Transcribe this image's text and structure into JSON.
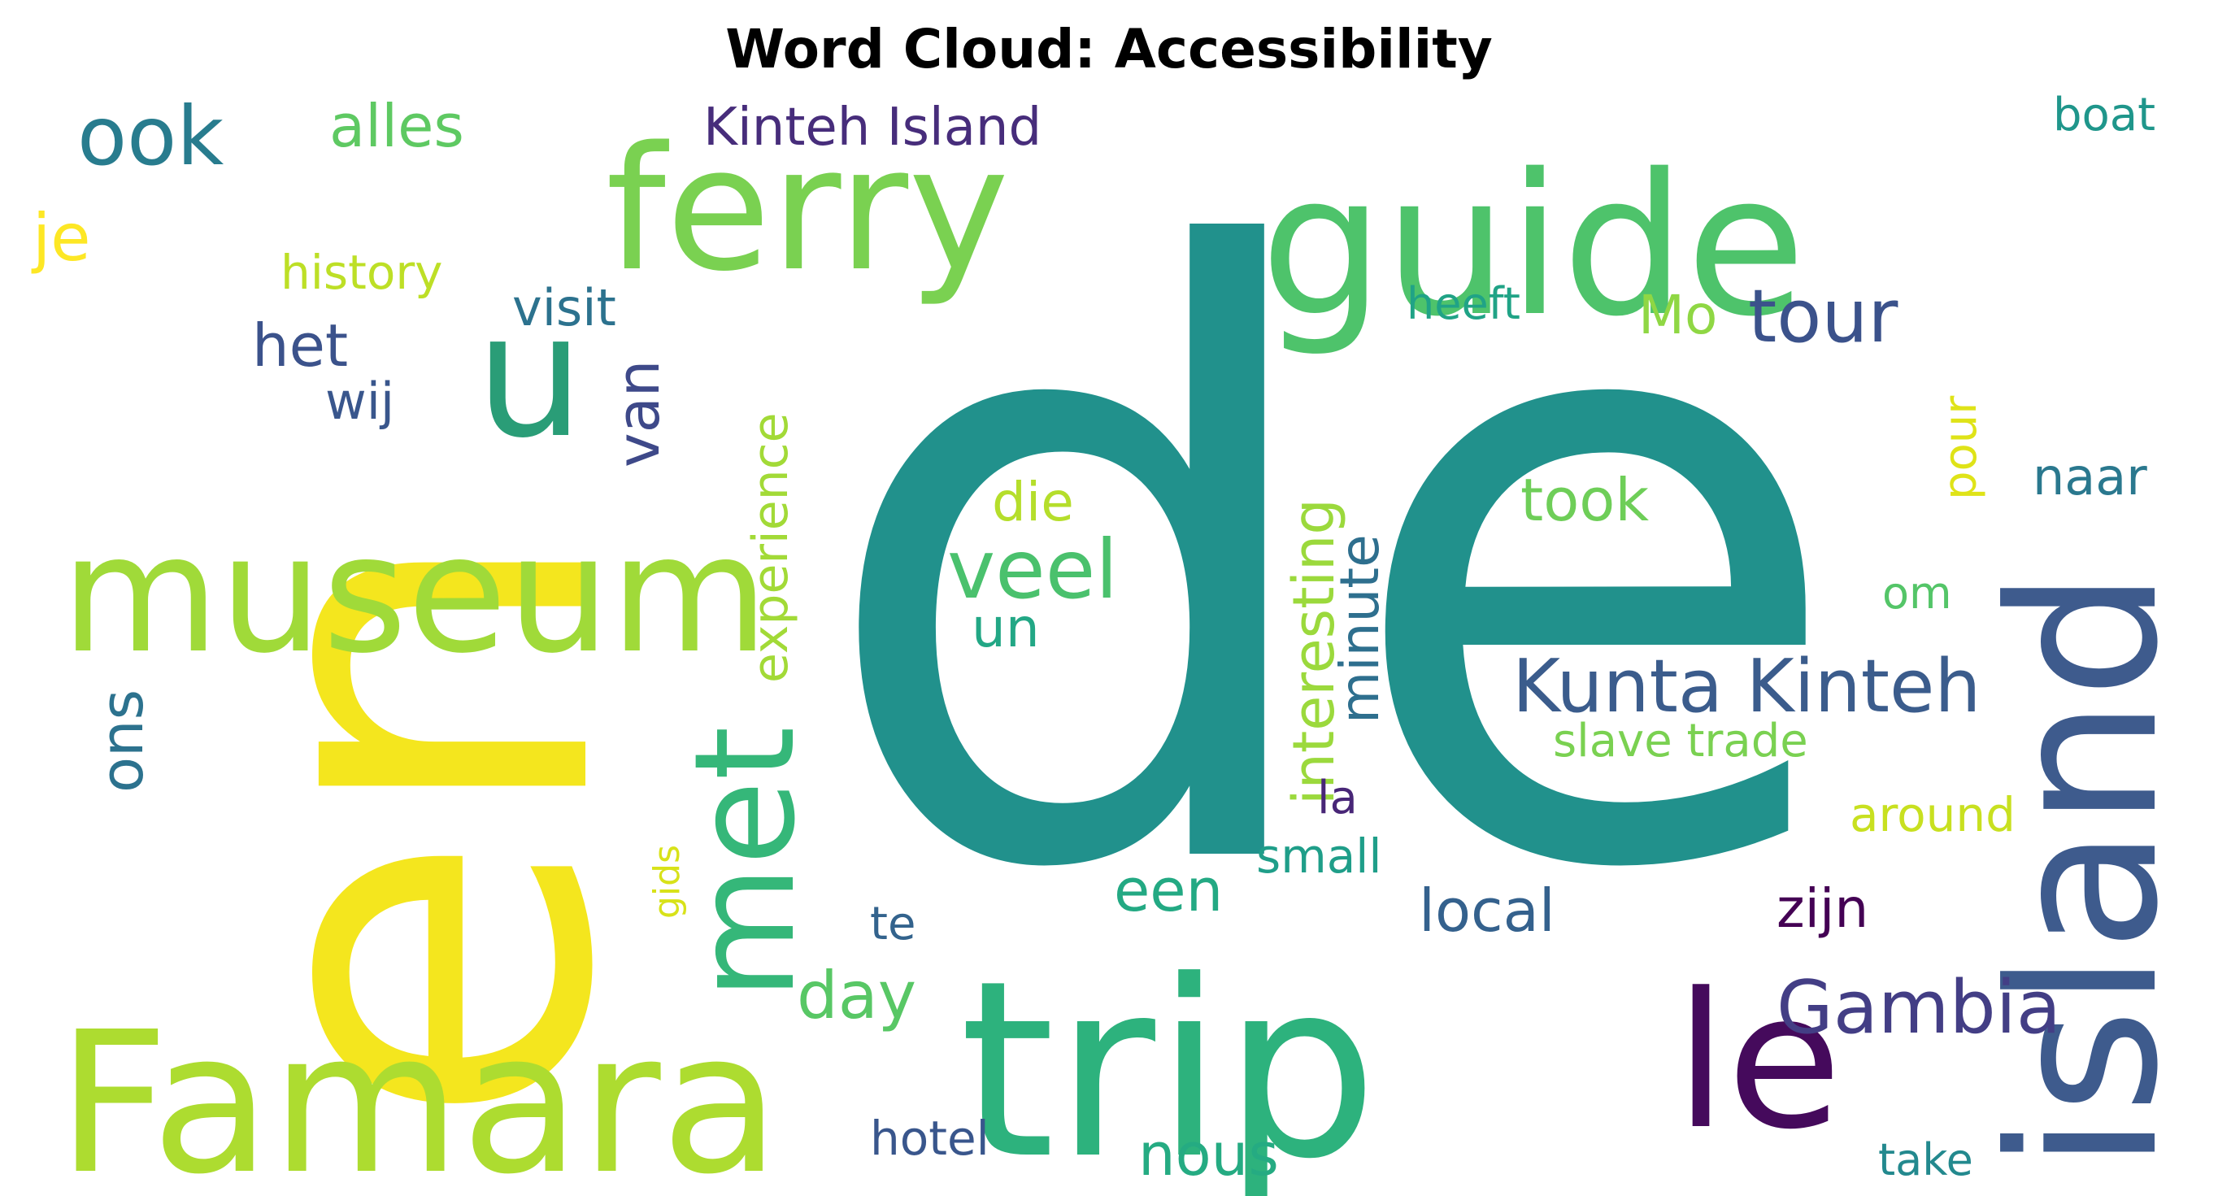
{
  "chart_data": {
    "type": "wordcloud",
    "title": "Word Cloud: Accessibility",
    "words": [
      {
        "text": "de",
        "color": "#21918c"
      },
      {
        "text": "en",
        "color": "#f4e61e"
      },
      {
        "text": "trip",
        "color": "#2db27d"
      },
      {
        "text": "Famara",
        "color": "#addc30"
      },
      {
        "text": "island",
        "color": "#3e5b8d"
      },
      {
        "text": "museum",
        "color": "#a0da39"
      },
      {
        "text": "guide",
        "color": "#4ec36b"
      },
      {
        "text": "ferry",
        "color": "#7ad151"
      },
      {
        "text": "le",
        "color": "#450a5c"
      },
      {
        "text": "u",
        "color": "#2a9d77"
      },
      {
        "text": "met",
        "color": "#35b779"
      },
      {
        "text": "Kunta Kinteh",
        "color": "#3b5c8c"
      },
      {
        "text": "Gambia",
        "color": "#433e85"
      },
      {
        "text": "veel",
        "color": "#4ac16d"
      },
      {
        "text": "experience",
        "color": "#a2da37"
      },
      {
        "text": "interesting",
        "color": "#9bd93c"
      },
      {
        "text": "ook",
        "color": "#287c8e"
      },
      {
        "text": "tour",
        "color": "#3b528b"
      },
      {
        "text": "Kinteh Island",
        "color": "#472d7b"
      },
      {
        "text": "alles",
        "color": "#5ec962"
      },
      {
        "text": "day",
        "color": "#58c765"
      },
      {
        "text": "took",
        "color": "#6ece58"
      },
      {
        "text": "nous",
        "color": "#25ab82"
      },
      {
        "text": "local",
        "color": "#34618d"
      },
      {
        "text": "zijn",
        "color": "#440154"
      },
      {
        "text": "van",
        "color": "#3e4989"
      },
      {
        "text": "minute",
        "color": "#2e6f8e"
      },
      {
        "text": "het",
        "color": "#3b528b"
      },
      {
        "text": "een",
        "color": "#23a983"
      },
      {
        "text": "die",
        "color": "#b5de2b"
      },
      {
        "text": "un",
        "color": "#22a785"
      },
      {
        "text": "ons",
        "color": "#2c728e"
      },
      {
        "text": "Mo",
        "color": "#8fd744"
      },
      {
        "text": "naar",
        "color": "#2a788e"
      },
      {
        "text": "history",
        "color": "#bddf26"
      },
      {
        "text": "visit",
        "color": "#2c728e"
      },
      {
        "text": "je",
        "color": "#fde725"
      },
      {
        "text": "wij",
        "color": "#39568c"
      },
      {
        "text": "slave trade",
        "color": "#7ad151"
      },
      {
        "text": "around",
        "color": "#c8e020"
      },
      {
        "text": "small",
        "color": "#1f9e89"
      },
      {
        "text": "hotel",
        "color": "#39568c"
      },
      {
        "text": "boat",
        "color": "#1f968b"
      },
      {
        "text": "heeft",
        "color": "#20a386"
      },
      {
        "text": "te",
        "color": "#33638d"
      },
      {
        "text": "take",
        "color": "#23898e"
      },
      {
        "text": "om",
        "color": "#54c568"
      },
      {
        "text": "pour",
        "color": "#dfe318"
      },
      {
        "text": "gids",
        "color": "#d8e219"
      },
      {
        "text": "la",
        "color": "#482677"
      }
    ]
  }
}
